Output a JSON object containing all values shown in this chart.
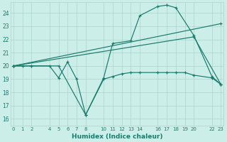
{
  "xlabel": "Humidex (Indice chaleur)",
  "bg_color": "#cceee8",
  "grid_color": "#aad4cc",
  "line_color": "#1a7a6e",
  "text_color": "#1a7a6e",
  "x_ticks": [
    0,
    1,
    2,
    4,
    5,
    6,
    7,
    8,
    10,
    11,
    12,
    13,
    14,
    16,
    17,
    18,
    19,
    20,
    22,
    23
  ],
  "xlim": [
    0,
    23
  ],
  "ylim": [
    15.5,
    24.8
  ],
  "y_ticks": [
    16,
    17,
    18,
    19,
    20,
    21,
    22,
    23,
    24
  ],
  "series": [
    {
      "x": [
        0,
        1,
        2,
        4,
        5,
        6,
        7,
        8,
        10,
        11,
        12,
        13,
        14,
        16,
        17,
        18,
        19,
        20,
        22,
        23
      ],
      "y": [
        20,
        20,
        20,
        20,
        19.1,
        20.3,
        19.0,
        16.3,
        19.0,
        19.2,
        19.4,
        19.5,
        19.5,
        19.5,
        19.5,
        19.5,
        19.5,
        19.3,
        19.1,
        18.6
      ]
    },
    {
      "x": [
        0,
        2,
        5,
        8,
        10,
        11,
        13,
        14,
        16,
        17,
        18,
        20,
        22,
        23
      ],
      "y": [
        20,
        20,
        20,
        16.3,
        19.1,
        21.7,
        21.9,
        23.8,
        24.5,
        24.6,
        24.4,
        22.3,
        19.2,
        18.6
      ]
    },
    {
      "x": [
        0,
        23
      ],
      "y": [
        20,
        23.2
      ]
    },
    {
      "x": [
        0,
        20,
        23
      ],
      "y": [
        20,
        22.2,
        18.6
      ]
    }
  ]
}
